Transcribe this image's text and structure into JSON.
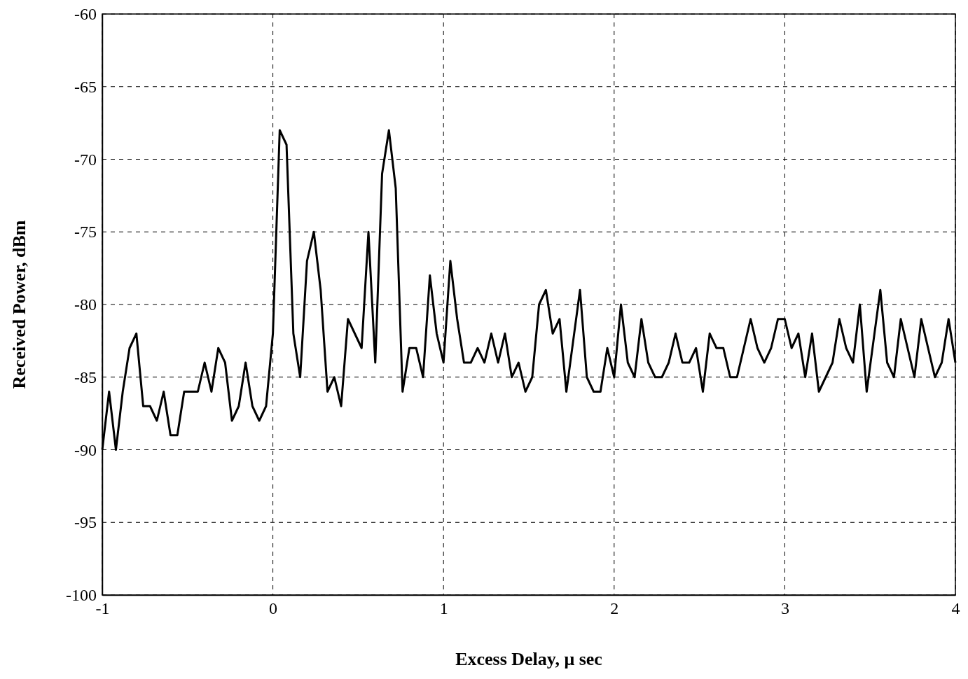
{
  "chart_data": {
    "type": "line",
    "xlabel": "Excess Delay, μ sec",
    "ylabel": "Received Power, dBm",
    "xlim": [
      -1,
      4
    ],
    "ylim": [
      -100,
      -60
    ],
    "xticks": [
      -1,
      0,
      1,
      2,
      3,
      4
    ],
    "yticks": [
      -60,
      -65,
      -70,
      -75,
      -80,
      -85,
      -90,
      -95,
      -100
    ],
    "grid": true,
    "series": [
      {
        "color": "#000000",
        "line_style": "solid",
        "x": [
          -1,
          -0.96,
          -0.92,
          -0.88,
          -0.84,
          -0.8,
          -0.76,
          -0.72,
          -0.68,
          -0.64,
          -0.6,
          -0.56,
          -0.52,
          -0.48,
          -0.44,
          -0.4,
          -0.36,
          -0.32,
          -0.28,
          -0.24,
          -0.2,
          -0.16,
          -0.12,
          -0.08,
          -0.04,
          0,
          0.04,
          0.08,
          0.12,
          0.16,
          0.2,
          0.24,
          0.28,
          0.32,
          0.36,
          0.4,
          0.44,
          0.48,
          0.52,
          0.56,
          0.6,
          0.64,
          0.68,
          0.72,
          0.76,
          0.8,
          0.84,
          0.88,
          0.92,
          0.96,
          1,
          1.04,
          1.08,
          1.12,
          1.16,
          1.2,
          1.24,
          1.28,
          1.32,
          1.36,
          1.4,
          1.44,
          1.48,
          1.52,
          1.56,
          1.6,
          1.64,
          1.68,
          1.72,
          1.76,
          1.8,
          1.84,
          1.88,
          1.92,
          1.96,
          2,
          2.04,
          2.08,
          2.12,
          2.16,
          2.2,
          2.24,
          2.28,
          2.32,
          2.36,
          2.4,
          2.44,
          2.48,
          2.52,
          2.56,
          2.6,
          2.64,
          2.68,
          2.72,
          2.76,
          2.8,
          2.84,
          2.88,
          2.92,
          2.96,
          3,
          3.04,
          3.08,
          3.12,
          3.16,
          3.2,
          3.24,
          3.28,
          3.32,
          3.36,
          3.4,
          3.44,
          3.48,
          3.52,
          3.56,
          3.6,
          3.64,
          3.68,
          3.72,
          3.76,
          3.8,
          3.84,
          3.88,
          3.92,
          3.96,
          4
        ],
        "values": [
          -90,
          -86,
          -90,
          -86,
          -83,
          -82,
          -87,
          -87,
          -88,
          -86,
          -89,
          -89,
          -86,
          -86,
          -86,
          -84,
          -86,
          -83,
          -84,
          -88,
          -87,
          -84,
          -87,
          -88,
          -87,
          -82,
          -68,
          -69,
          -82,
          -85,
          -77,
          -75,
          -79,
          -86,
          -85,
          -87,
          -81,
          -82,
          -83,
          -75,
          -84,
          -71,
          -68,
          -72,
          -86,
          -83,
          -83,
          -85,
          -78,
          -82,
          -84,
          -77,
          -81,
          -84,
          -84,
          -83,
          -84,
          -82,
          -84,
          -82,
          -85,
          -84,
          -86,
          -85,
          -80,
          -79,
          -82,
          -81,
          -86,
          -82.5,
          -79,
          -85,
          -86,
          -86,
          -83,
          -85,
          -80,
          -84,
          -85,
          -81,
          -84,
          -85,
          -85,
          -84,
          -82,
          -84,
          -84,
          -83,
          -86,
          -82,
          -83,
          -83,
          -85,
          -85,
          -83,
          -81,
          -83,
          -84,
          -83,
          -81,
          -81,
          -83,
          -82,
          -85,
          -82,
          -86,
          -85,
          -84,
          -81,
          -83,
          -84,
          -80,
          -86,
          -82.5,
          -79,
          -84,
          -85,
          -81,
          -83,
          -85,
          -81,
          -83,
          -85,
          -84,
          -81,
          -84
        ]
      }
    ]
  }
}
